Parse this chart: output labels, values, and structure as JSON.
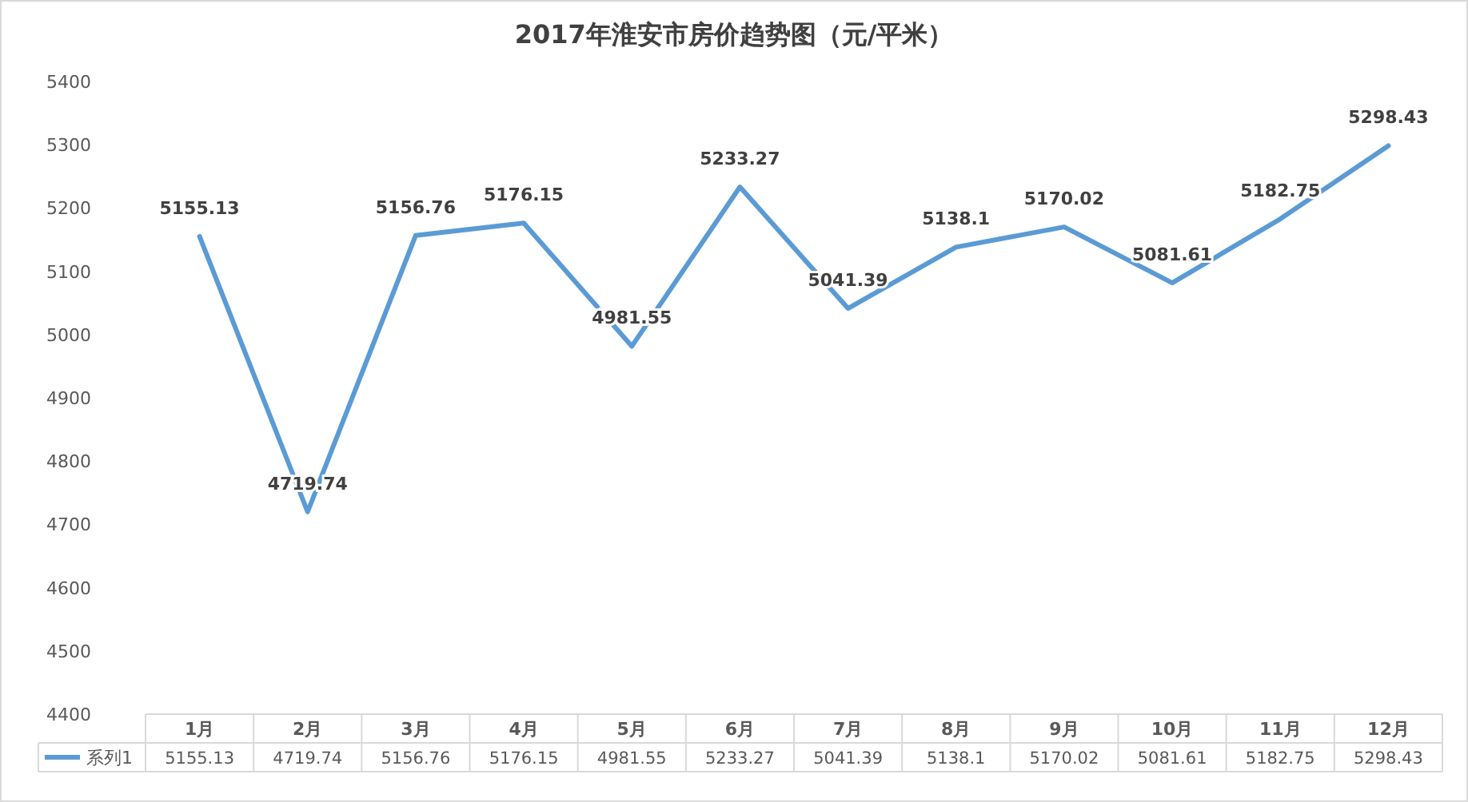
{
  "chart_data": {
    "type": "line",
    "title": "2017年淮安市房价趋势图（元/平米）",
    "categories": [
      "1月",
      "2月",
      "3月",
      "4月",
      "5月",
      "6月",
      "7月",
      "8月",
      "9月",
      "10月",
      "11月",
      "12月"
    ],
    "series": [
      {
        "name": "系列1",
        "color": "#5b9bd5",
        "values": [
          5155.13,
          4719.74,
          5156.76,
          5176.15,
          4981.55,
          5233.27,
          5041.39,
          5138.1,
          5170.02,
          5081.61,
          5182.75,
          5298.43
        ]
      }
    ],
    "annotations": [
      {
        "text": "5155.13",
        "x": "1月",
        "y": 5155.13
      },
      {
        "text": "4719.74",
        "x": "2月",
        "y": 4719.74
      },
      {
        "text": "5156.76",
        "x": "3月",
        "y": 5156.76
      },
      {
        "text": "5176.15",
        "x": "4月",
        "y": 5176.15
      },
      {
        "text": "4981.55",
        "x": "5月",
        "y": 4981.55
      },
      {
        "text": "5233.27",
        "x": "6月",
        "y": 5233.27
      },
      {
        "text": "5041.39",
        "x": "7月",
        "y": 5041.39
      },
      {
        "text": "5138.1",
        "x": "8月",
        "y": 5138.1
      },
      {
        "text": "5170.02",
        "x": "9月",
        "y": 5170.02
      },
      {
        "text": "5081.61",
        "x": "10月",
        "y": 5081.61
      },
      {
        "text": "5182.75",
        "x": "11月",
        "y": 5182.75
      },
      {
        "text": "5298.43",
        "x": "12月",
        "y": 5298.43
      }
    ],
    "ylim": [
      4400,
      5400
    ],
    "yticks": [
      4400,
      4500,
      4600,
      4700,
      4800,
      4900,
      5000,
      5100,
      5200,
      5300,
      5400
    ],
    "data_labels": true,
    "legend": "bottom",
    "grid": false,
    "marker": "none"
  }
}
